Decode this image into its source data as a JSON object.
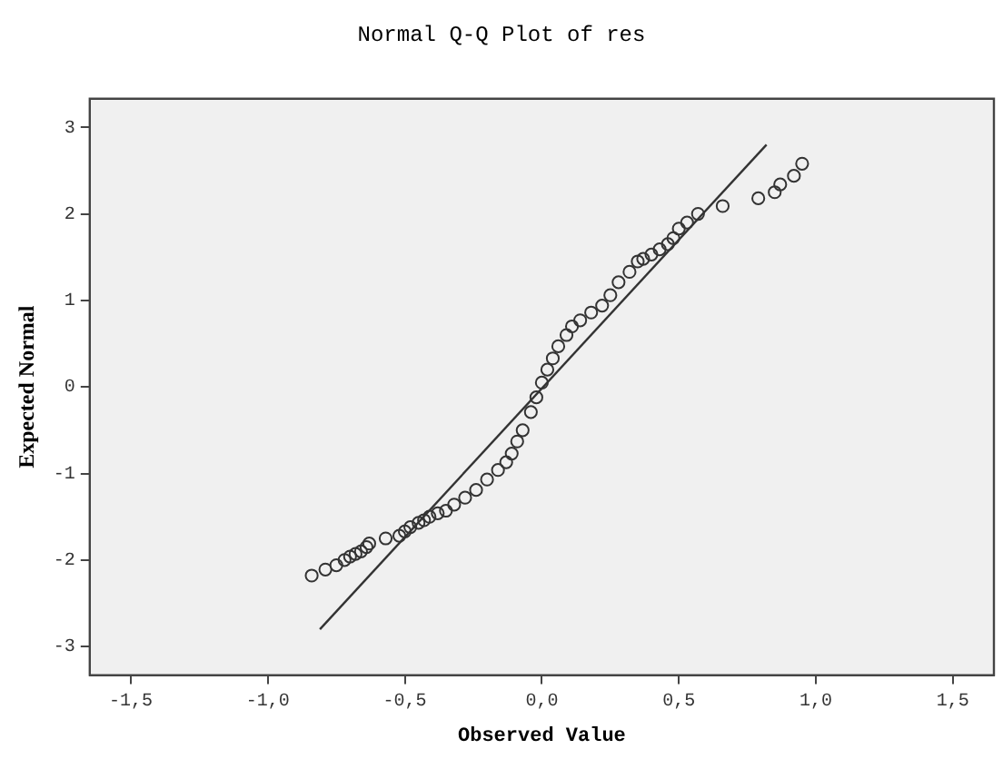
{
  "chart_data": {
    "type": "scatter",
    "title": "Normal Q-Q Plot of res",
    "xlabel": "Observed Value",
    "ylabel": "Expected Normal",
    "xlim": [
      -1.65,
      1.65
    ],
    "ylim": [
      -3.33,
      3.33
    ],
    "xticks": [
      {
        "value": -1.5,
        "label": "-1,5"
      },
      {
        "value": -1,
        "label": "-1,0"
      },
      {
        "value": -0.5,
        "label": "-0,5"
      },
      {
        "value": 0,
        "label": "0,0"
      },
      {
        "value": 0.5,
        "label": "0,5"
      },
      {
        "value": 1,
        "label": "1,0"
      },
      {
        "value": 1.5,
        "label": "1,5"
      }
    ],
    "yticks": [
      -3,
      -2,
      -1,
      0,
      1,
      2,
      3
    ],
    "grid": false,
    "legend": false,
    "series": [
      {
        "type": "scatter",
        "marker": "circle",
        "color": "#333333",
        "x": [
          -0.84,
          -0.79,
          -0.75,
          -0.72,
          -0.7,
          -0.68,
          -0.66,
          -0.64,
          -0.63,
          -0.57,
          -0.52,
          -0.5,
          -0.48,
          -0.45,
          -0.43,
          -0.41,
          -0.38,
          -0.35,
          -0.32,
          -0.28,
          -0.24,
          -0.2,
          -0.16,
          -0.13,
          -0.11,
          -0.09,
          -0.07,
          -0.04,
          -0.02,
          0,
          0.02,
          0.04,
          0.06,
          0.09,
          0.11,
          0.14,
          0.18,
          0.22,
          0.25,
          0.28,
          0.32,
          0.35,
          0.37,
          0.4,
          0.43,
          0.46,
          0.48,
          0.5,
          0.53,
          0.57,
          0.66,
          0.79,
          0.85,
          0.87,
          0.92,
          0.95
        ],
        "values": [
          -2.18,
          -2.11,
          -2.06,
          -2,
          -1.96,
          -1.93,
          -1.9,
          -1.85,
          -1.81,
          -1.75,
          -1.72,
          -1.67,
          -1.62,
          -1.57,
          -1.54,
          -1.5,
          -1.46,
          -1.43,
          -1.36,
          -1.28,
          -1.19,
          -1.07,
          -0.96,
          -0.87,
          -0.77,
          -0.63,
          -0.5,
          -0.29,
          -0.12,
          0.05,
          0.2,
          0.33,
          0.47,
          0.6,
          0.7,
          0.77,
          0.86,
          0.94,
          1.06,
          1.21,
          1.33,
          1.45,
          1.48,
          1.53,
          1.59,
          1.65,
          1.72,
          1.83,
          1.9,
          2,
          2.09,
          2.18,
          2.25,
          2.34,
          2.44,
          2.58
        ]
      },
      {
        "type": "line",
        "marker": "none",
        "color": "#333333",
        "x": [
          -0.81,
          0.82
        ],
        "values": [
          -2.8,
          2.8
        ]
      }
    ]
  }
}
